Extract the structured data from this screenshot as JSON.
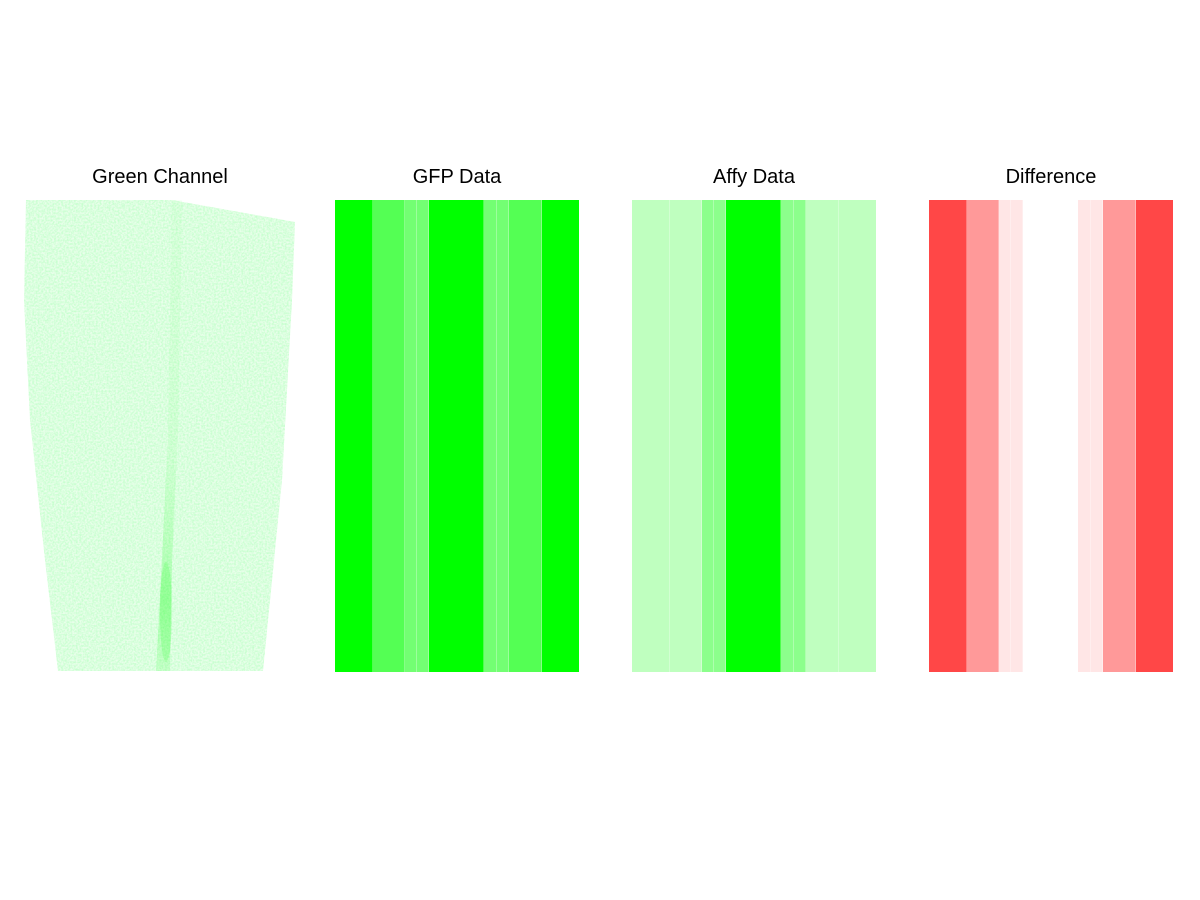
{
  "chart_data": [
    {
      "type": "image",
      "title": "Green Channel",
      "colors": {
        "tissue": "#00ff00",
        "background": "#ffffff"
      },
      "note_visual": "faint speckled green tissue silhouette with a brighter central vertical streak"
    },
    {
      "type": "heatmap",
      "title": "GFP Data",
      "colors": {
        "high": "#00ff00",
        "low": "#ffffff",
        "separator": "#ffffff"
      },
      "columns": [
        {
          "width": 38,
          "intensity": 1.0
        },
        {
          "width": 32,
          "intensity": 0.67
        },
        {
          "width": 12,
          "intensity": 0.55
        },
        {
          "width": 12,
          "intensity": 0.55
        },
        {
          "width": 55,
          "intensity": 1.0
        },
        {
          "width": 13,
          "intensity": 0.55
        },
        {
          "width": 12,
          "intensity": 0.55
        },
        {
          "width": 33,
          "intensity": 0.67
        },
        {
          "width": 37,
          "intensity": 1.0
        }
      ]
    },
    {
      "type": "heatmap",
      "title": "Affy Data",
      "colors": {
        "high": "#00ff00",
        "low": "#ffffff",
        "separator": "#ffffff"
      },
      "columns": [
        {
          "width": 38,
          "intensity": 0.25
        },
        {
          "width": 32,
          "intensity": 0.25
        },
        {
          "width": 12,
          "intensity": 0.45
        },
        {
          "width": 12,
          "intensity": 0.45
        },
        {
          "width": 55,
          "intensity": 1.0
        },
        {
          "width": 13,
          "intensity": 0.45
        },
        {
          "width": 12,
          "intensity": 0.45
        },
        {
          "width": 33,
          "intensity": 0.25
        },
        {
          "width": 37,
          "intensity": 0.25
        }
      ]
    },
    {
      "type": "heatmap",
      "title": "Difference",
      "colors": {
        "high": "#ff0000",
        "low": "#ffffff",
        "separator": "#ffffff"
      },
      "columns": [
        {
          "width": 38,
          "intensity": 0.72
        },
        {
          "width": 32,
          "intensity": 0.4
        },
        {
          "width": 12,
          "intensity": 0.1
        },
        {
          "width": 12,
          "intensity": 0.1
        },
        {
          "width": 55,
          "intensity": 0.0
        },
        {
          "width": 13,
          "intensity": 0.1
        },
        {
          "width": 12,
          "intensity": 0.1
        },
        {
          "width": 33,
          "intensity": 0.4
        },
        {
          "width": 37,
          "intensity": 0.72
        }
      ]
    }
  ]
}
